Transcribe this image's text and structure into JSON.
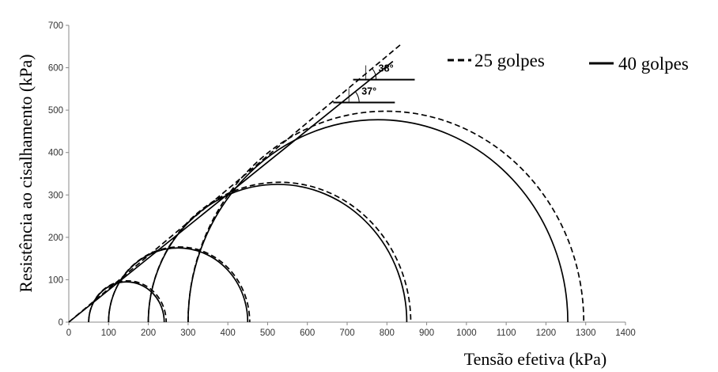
{
  "chart_data": {
    "type": "line",
    "title": "",
    "xlabel": "Tensão efetiva (kPa)",
    "ylabel": "Resistência ao cisalhamento (kPa)",
    "xlim": [
      0,
      1400
    ],
    "ylim": [
      0,
      700
    ],
    "x_ticks": [
      "0",
      "100",
      "200",
      "300",
      "400",
      "500",
      "600",
      "700",
      "800",
      "900",
      "1000",
      "1100",
      "1200",
      "1300",
      "1400"
    ],
    "y_ticks": [
      "0",
      "100",
      "200",
      "300",
      "400",
      "500",
      "600",
      "700"
    ],
    "grid": false,
    "legend_position": "top-right",
    "series": [
      {
        "name": "25 golpes",
        "style": "dashed",
        "circles": [
          {
            "sigma3": 50,
            "sigma1": 245
          },
          {
            "sigma3": 100,
            "sigma1": 455
          },
          {
            "sigma3": 200,
            "sigma1": 860
          },
          {
            "sigma3": 300,
            "sigma1": 1295
          }
        ],
        "envelope": {
          "x_start": 0,
          "y_start": 0,
          "x_end": 835,
          "y_end": 655
        }
      },
      {
        "name": "40 golpes",
        "style": "solid",
        "circles": [
          {
            "sigma3": 50,
            "sigma1": 240
          },
          {
            "sigma3": 100,
            "sigma1": 450
          },
          {
            "sigma3": 200,
            "sigma1": 850
          },
          {
            "sigma3": 300,
            "sigma1": 1255
          }
        ],
        "envelope": {
          "x_start": 0,
          "y_start": 0,
          "x_end": 815,
          "y_end": 615
        }
      }
    ],
    "annotations": [
      {
        "label": "38°",
        "series": "25 golpes",
        "ref_y": 572,
        "x_from": 715,
        "x_to": 870
      },
      {
        "label": "37°",
        "series": "40 golpes",
        "ref_y": 518,
        "x_from": 665,
        "x_to": 820
      }
    ]
  }
}
